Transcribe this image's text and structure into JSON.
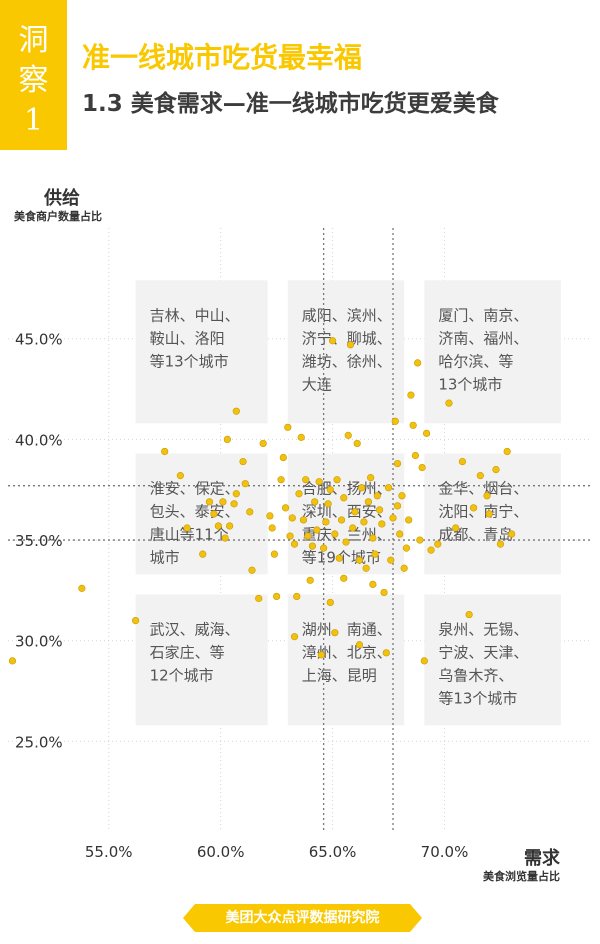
{
  "tag": {
    "chars": [
      "洞",
      "察",
      "1"
    ]
  },
  "title": "准一线城市吃货最幸福",
  "subtitle": "1.3 美食需求—准一线城市吃货更爱美食",
  "chart_data": {
    "type": "scatter",
    "ylabel": "供给",
    "ylabel_sub": "美食商户数量占比",
    "xlabel": "需求",
    "xlabel_sub": "美食浏览量占比",
    "x_ticks": [
      "55.0%",
      "60.0%",
      "65.0%",
      "70.0%"
    ],
    "y_ticks": [
      "45.0%",
      "40.0%",
      "35.0%",
      "30.0%",
      "25.0%"
    ],
    "xlim": [
      50.5,
      76.5
    ],
    "ylim": [
      20.5,
      50.5
    ],
    "x_divider_mean": 64.6,
    "x_divider_75pct": 67.7,
    "y_divider_mean": 37.7,
    "y_divider_75pct": 35.0,
    "color": "#f2c10e",
    "groups": [
      {
        "lines": [
          "吉林、中山、",
          "鞍山、洛阳",
          "等13个城市"
        ]
      },
      {
        "lines": [
          "咸阳、滨州、",
          "济宁、聊城、",
          "潍坊、徐州、",
          "大连"
        ]
      },
      {
        "lines": [
          "厦门、南京、",
          "济南、福州、",
          "哈尔滨、等",
          "13个城市"
        ]
      },
      {
        "lines": [
          "淮安、保定、",
          "包头、泰安、",
          "唐山等11个",
          "城市"
        ]
      },
      {
        "lines": [
          "合肥、扬州、",
          "深圳、西安、",
          "重庆、兰州、",
          "等19个城市"
        ]
      },
      {
        "lines": [
          "金华、烟台、",
          "沈阳、南宁、",
          "成都、青岛"
        ]
      },
      {
        "lines": [
          "武汉、威海、",
          "石家庄、等",
          "12个城市"
        ]
      },
      {
        "lines": [
          "湖州、南通、",
          "漳州、北京、",
          "上海、昆明"
        ]
      },
      {
        "lines": [
          "泉州、无锡、",
          "宁波、天津、",
          "乌鲁木齐、",
          "等13个城市"
        ]
      }
    ],
    "points": [
      [
        50.7,
        29.0
      ],
      [
        53.8,
        32.6
      ],
      [
        56.2,
        31.0
      ],
      [
        57.5,
        39.4
      ],
      [
        58.2,
        38.2
      ],
      [
        58.5,
        35.6
      ],
      [
        59.5,
        36.9
      ],
      [
        59.7,
        36.3
      ],
      [
        59.9,
        35.7
      ],
      [
        60.1,
        36.9
      ],
      [
        60.2,
        35.1
      ],
      [
        60.3,
        40.0
      ],
      [
        60.4,
        35.7
      ],
      [
        60.6,
        36.8
      ],
      [
        60.7,
        41.4
      ],
      [
        61.0,
        38.9
      ],
      [
        61.1,
        37.8
      ],
      [
        61.3,
        36.4
      ],
      [
        61.7,
        32.1
      ],
      [
        61.9,
        39.8
      ],
      [
        62.2,
        36.2
      ],
      [
        62.3,
        35.6
      ],
      [
        62.4,
        34.3
      ],
      [
        62.5,
        32.2
      ],
      [
        62.7,
        38.0
      ],
      [
        62.9,
        36.6
      ],
      [
        63.0,
        40.6
      ],
      [
        63.1,
        35.2
      ],
      [
        63.2,
        36.1
      ],
      [
        63.3,
        34.8
      ],
      [
        63.4,
        32.2
      ],
      [
        63.5,
        37.3
      ],
      [
        63.6,
        40.1
      ],
      [
        63.7,
        36.0
      ],
      [
        63.8,
        38.0
      ],
      [
        63.9,
        35.2
      ],
      [
        64.0,
        33.0
      ],
      [
        64.1,
        34.7
      ],
      [
        64.2,
        36.9
      ],
      [
        64.3,
        35.5
      ],
      [
        64.4,
        37.9
      ],
      [
        64.5,
        29.3
      ],
      [
        64.6,
        34.6
      ],
      [
        64.7,
        35.9
      ],
      [
        64.8,
        36.8
      ],
      [
        64.9,
        37.5
      ],
      [
        65.0,
        44.9
      ],
      [
        65.1,
        35.3
      ],
      [
        65.2,
        38.0
      ],
      [
        65.3,
        34.1
      ],
      [
        65.4,
        36.0
      ],
      [
        65.5,
        37.1
      ],
      [
        65.6,
        34.9
      ],
      [
        65.7,
        40.2
      ],
      [
        65.8,
        44.7
      ],
      [
        65.9,
        35.6
      ],
      [
        66.0,
        36.4
      ],
      [
        66.1,
        39.8
      ],
      [
        66.2,
        34.0
      ],
      [
        66.3,
        37.6
      ],
      [
        66.4,
        35.9
      ],
      [
        66.5,
        33.6
      ],
      [
        66.6,
        36.9
      ],
      [
        66.7,
        38.1
      ],
      [
        66.8,
        35.1
      ],
      [
        66.9,
        34.3
      ],
      [
        67.0,
        37.2
      ],
      [
        67.1,
        36.5
      ],
      [
        67.2,
        35.8
      ],
      [
        67.3,
        32.4
      ],
      [
        67.4,
        29.4
      ],
      [
        67.5,
        37.6
      ],
      [
        67.6,
        34.0
      ],
      [
        67.7,
        36.1
      ],
      [
        67.8,
        40.9
      ],
      [
        67.9,
        38.8
      ],
      [
        68.0,
        35.3
      ],
      [
        68.1,
        37.2
      ],
      [
        68.2,
        33.6
      ],
      [
        68.3,
        34.6
      ],
      [
        68.4,
        36.0
      ],
      [
        68.5,
        42.2
      ],
      [
        68.6,
        40.7
      ],
      [
        68.7,
        39.2
      ],
      [
        68.8,
        43.8
      ],
      [
        68.9,
        35.0
      ],
      [
        69.0,
        38.6
      ],
      [
        69.1,
        29.0
      ],
      [
        69.2,
        40.3
      ],
      [
        69.4,
        34.5
      ],
      [
        69.7,
        34.8
      ],
      [
        70.2,
        41.8
      ],
      [
        70.5,
        35.6
      ],
      [
        70.8,
        38.9
      ],
      [
        71.1,
        31.3
      ],
      [
        71.3,
        36.6
      ],
      [
        71.6,
        38.2
      ],
      [
        71.9,
        37.2
      ],
      [
        72.0,
        36.3
      ],
      [
        72.3,
        38.5
      ],
      [
        72.5,
        34.8
      ],
      [
        72.8,
        39.4
      ],
      [
        73.0,
        35.3
      ],
      [
        67.9,
        36.7
      ],
      [
        66.8,
        32.8
      ],
      [
        65.5,
        33.1
      ],
      [
        64.9,
        31.9
      ],
      [
        63.3,
        30.2
      ],
      [
        65.1,
        30.4
      ],
      [
        66.2,
        29.8
      ],
      [
        62.8,
        39.1
      ],
      [
        60.7,
        37.3
      ],
      [
        61.4,
        33.5
      ],
      [
        59.2,
        34.3
      ]
    ]
  },
  "banner": "美团大众点评数据研究院"
}
